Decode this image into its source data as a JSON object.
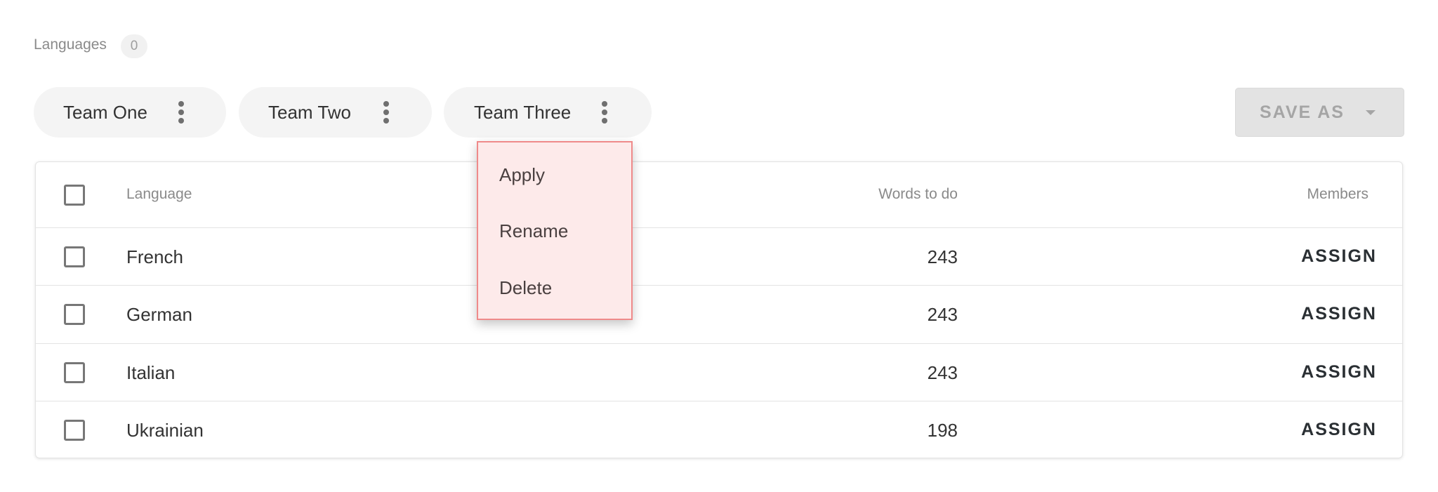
{
  "header": {
    "title": "Languages",
    "count": "0"
  },
  "teams": [
    {
      "label": "Team One"
    },
    {
      "label": "Team Two"
    },
    {
      "label": "Team Three"
    }
  ],
  "save_as": {
    "label": "SAVE AS"
  },
  "context_menu": {
    "items": [
      "Apply",
      "Rename",
      "Delete"
    ],
    "accent_bg": "#fdeaea",
    "accent_border": "#ef8a8a"
  },
  "table": {
    "columns": {
      "language": "Language",
      "words": "Words to do",
      "members": "Members"
    },
    "rows": [
      {
        "language": "French",
        "words": "243",
        "action": "ASSIGN"
      },
      {
        "language": "German",
        "words": "243",
        "action": "ASSIGN"
      },
      {
        "language": "Italian",
        "words": "243",
        "action": "ASSIGN"
      },
      {
        "language": "Ukrainian",
        "words": "198",
        "action": "ASSIGN"
      }
    ]
  }
}
